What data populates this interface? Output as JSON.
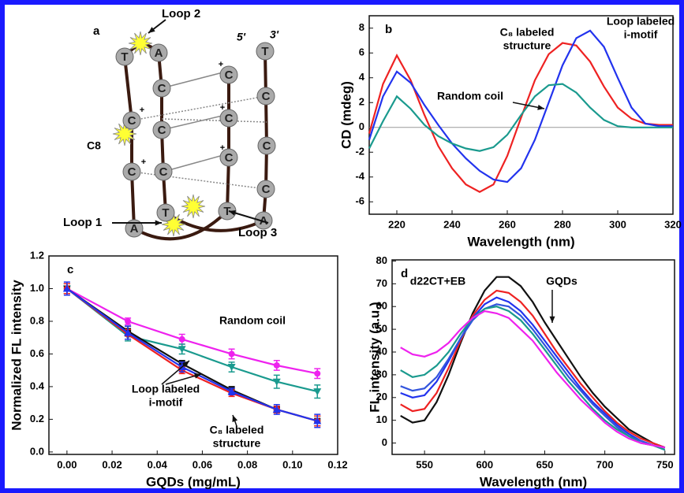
{
  "diagram": {
    "panel_label": "a",
    "loop_labels": [
      "Loop 2",
      "Loop 1",
      "Loop 3"
    ],
    "c8_label": "C8",
    "strand_ends": [
      "5'",
      "3'"
    ],
    "charge": "+",
    "nucleotides": [
      "T",
      "C",
      "C",
      "A",
      "A",
      "C",
      "C",
      "C",
      "T",
      "C",
      "C",
      "C",
      "T",
      "T",
      "C",
      "C",
      "C",
      "A"
    ]
  },
  "chart_data": [
    {
      "type": "line",
      "panel_label": "b",
      "xlabel": "Wavelength (nm)",
      "ylabel": "CD (mdeg)",
      "xlim": [
        210,
        320
      ],
      "ylim": [
        -7,
        9
      ],
      "xticks": [
        220,
        240,
        260,
        280,
        300,
        320
      ],
      "yticks": [
        -6,
        -4,
        -2,
        0,
        2,
        4,
        6,
        8
      ],
      "hline": 0,
      "x": [
        210,
        215,
        220,
        225,
        230,
        235,
        240,
        245,
        250,
        255,
        260,
        265,
        270,
        275,
        280,
        285,
        290,
        295,
        300,
        305,
        310,
        315,
        320
      ],
      "series": [
        {
          "color": "#ee2222",
          "values": [
            -0.5,
            3.5,
            5.8,
            3.8,
            1.0,
            -1.5,
            -3.3,
            -4.6,
            -5.2,
            -4.6,
            -2.3,
            0.8,
            3.8,
            5.9,
            6.8,
            6.6,
            5.3,
            3.3,
            1.6,
            0.7,
            0.3,
            0.2,
            0.2
          ]
        },
        {
          "color": "#2233ee",
          "values": [
            -1.0,
            2.5,
            4.5,
            3.6,
            1.8,
            0.2,
            -1.3,
            -2.5,
            -3.5,
            -4.2,
            -4.4,
            -3.3,
            -1.0,
            2.0,
            5.0,
            7.2,
            7.8,
            6.5,
            4.0,
            1.6,
            0.3,
            0.1,
            0.1
          ]
        },
        {
          "color": "#1a9a8e",
          "values": [
            -1.7,
            0.5,
            2.5,
            1.5,
            0.2,
            -0.7,
            -1.3,
            -1.7,
            -1.9,
            -1.6,
            -0.6,
            1.0,
            2.5,
            3.4,
            3.5,
            2.8,
            1.6,
            0.6,
            0.1,
            0,
            0,
            0,
            0
          ]
        }
      ],
      "annotations": [
        [
          "Loop labeled",
          "i-motif"
        ],
        [
          "C₈ labeled",
          "structure"
        ],
        [
          "Random coil"
        ]
      ]
    },
    {
      "type": "line",
      "panel_label": "c",
      "xlabel": "GQDs (mg/mL)",
      "ylabel": "Normalized FL intensity",
      "xlim": [
        -0.008,
        0.12
      ],
      "ylim": [
        -0.015,
        1.2
      ],
      "xticks": [
        {
          "value": 0,
          "label": "0.00"
        },
        {
          "value": 0.02,
          "label": "0.02"
        },
        {
          "value": 0.04,
          "label": "0.04"
        },
        {
          "value": 0.06,
          "label": "0.06"
        },
        {
          "value": 0.08,
          "label": "0.08"
        },
        {
          "value": 0.1,
          "label": "0.10"
        },
        {
          "value": 0.12,
          "label": "0.12"
        }
      ],
      "yticks": [
        {
          "value": 0,
          "label": "0.0"
        },
        0.2,
        0.4,
        0.6,
        0.8,
        {
          "value": 1,
          "label": "1.0"
        },
        1.2
      ],
      "x": [
        0,
        0.027,
        0.051,
        0.073,
        0.093,
        0.111
      ],
      "series": [
        {
          "color": "#ee22ee",
          "marker": "circle",
          "values": [
            1.0,
            0.8,
            0.69,
            0.6,
            0.53,
            0.48
          ],
          "errors": [
            0.03,
            0.02,
            0.03,
            0.03,
            0.03,
            0.03
          ]
        },
        {
          "color": "#1a9a8e",
          "marker": "tri-down",
          "values": [
            1.0,
            0.71,
            0.63,
            0.52,
            0.43,
            0.37
          ],
          "errors": [
            0.03,
            0.03,
            0.03,
            0.03,
            0.04,
            0.04
          ]
        },
        {
          "color": "#111111",
          "marker": "square",
          "values": [
            1.0,
            0.74,
            0.54,
            0.38,
            0.26,
            0.19
          ],
          "errors": [
            0.03,
            0.03,
            0.02,
            0.02,
            0.02,
            0.03
          ]
        },
        {
          "color": "#ee2222",
          "marker": "circle",
          "values": [
            1.0,
            0.72,
            0.5,
            0.36,
            0.26,
            0.19
          ],
          "errors": [
            0.03,
            0.03,
            0.02,
            0.02,
            0.02,
            0.03
          ]
        },
        {
          "color": "#2233ee",
          "marker": "triangle",
          "values": [
            1.0,
            0.73,
            0.52,
            0.37,
            0.26,
            0.19
          ],
          "errors": [
            0.04,
            0.04,
            0.03,
            0.02,
            0.03,
            0.04
          ]
        }
      ],
      "annotations": [
        [
          "Random coil"
        ],
        [
          "Loop labeled",
          "i-motif"
        ],
        [
          "C₈ labeled",
          "structure"
        ]
      ]
    },
    {
      "type": "line",
      "panel_label": "d",
      "xlabel": "Wavelength (nm)",
      "ylabel": "FL intensity (a.u.)",
      "xlim": [
        523,
        758
      ],
      "ylim": [
        -5,
        80.5
      ],
      "xticks": [
        550,
        600,
        650,
        700,
        750
      ],
      "yticks": [
        0,
        10,
        20,
        30,
        40,
        50,
        60,
        70,
        80
      ],
      "x": [
        530,
        540,
        550,
        560,
        570,
        580,
        590,
        600,
        610,
        620,
        630,
        640,
        650,
        660,
        670,
        680,
        690,
        700,
        710,
        720,
        730,
        740,
        750
      ],
      "series": [
        {
          "color": "#111111",
          "values": [
            12,
            9,
            10,
            18,
            30,
            44,
            57,
            67,
            73,
            73,
            69,
            62,
            53,
            45,
            37,
            29,
            22,
            16,
            11,
            6,
            3,
            0,
            -2
          ]
        },
        {
          "color": "#ee2222",
          "values": [
            17,
            14,
            15,
            22,
            33,
            45,
            56,
            63,
            67,
            66,
            62,
            56,
            48,
            40,
            33,
            26,
            20,
            14,
            9,
            5,
            2,
            0,
            -2
          ]
        },
        {
          "color": "#2233ee",
          "values": [
            22,
            20,
            21,
            27,
            36,
            46,
            55,
            61,
            64,
            62,
            58,
            52,
            45,
            38,
            31,
            24,
            18,
            13,
            8,
            4,
            1,
            -1,
            -2
          ]
        },
        {
          "color": "#3355dd",
          "values": [
            25,
            23,
            24,
            29,
            37,
            46,
            54,
            59,
            61,
            60,
            56,
            50,
            43,
            36,
            29,
            23,
            17,
            12,
            7,
            3,
            1,
            -1,
            -3
          ]
        },
        {
          "color": "#1a9a8e",
          "values": [
            32,
            29,
            30,
            34,
            40,
            48,
            55,
            59,
            60,
            58,
            54,
            48,
            41,
            34,
            27,
            21,
            15,
            10,
            6,
            3,
            0,
            -1,
            -3
          ]
        },
        {
          "color": "#ee22ee",
          "values": [
            42,
            39,
            38,
            40,
            44,
            50,
            55,
            58,
            57,
            55,
            50,
            45,
            38,
            31,
            25,
            19,
            14,
            9,
            5,
            2,
            0,
            -1,
            -2
          ]
        }
      ],
      "annotations": [
        [
          "d22CT+EB"
        ],
        [
          "GQDs"
        ]
      ]
    }
  ]
}
